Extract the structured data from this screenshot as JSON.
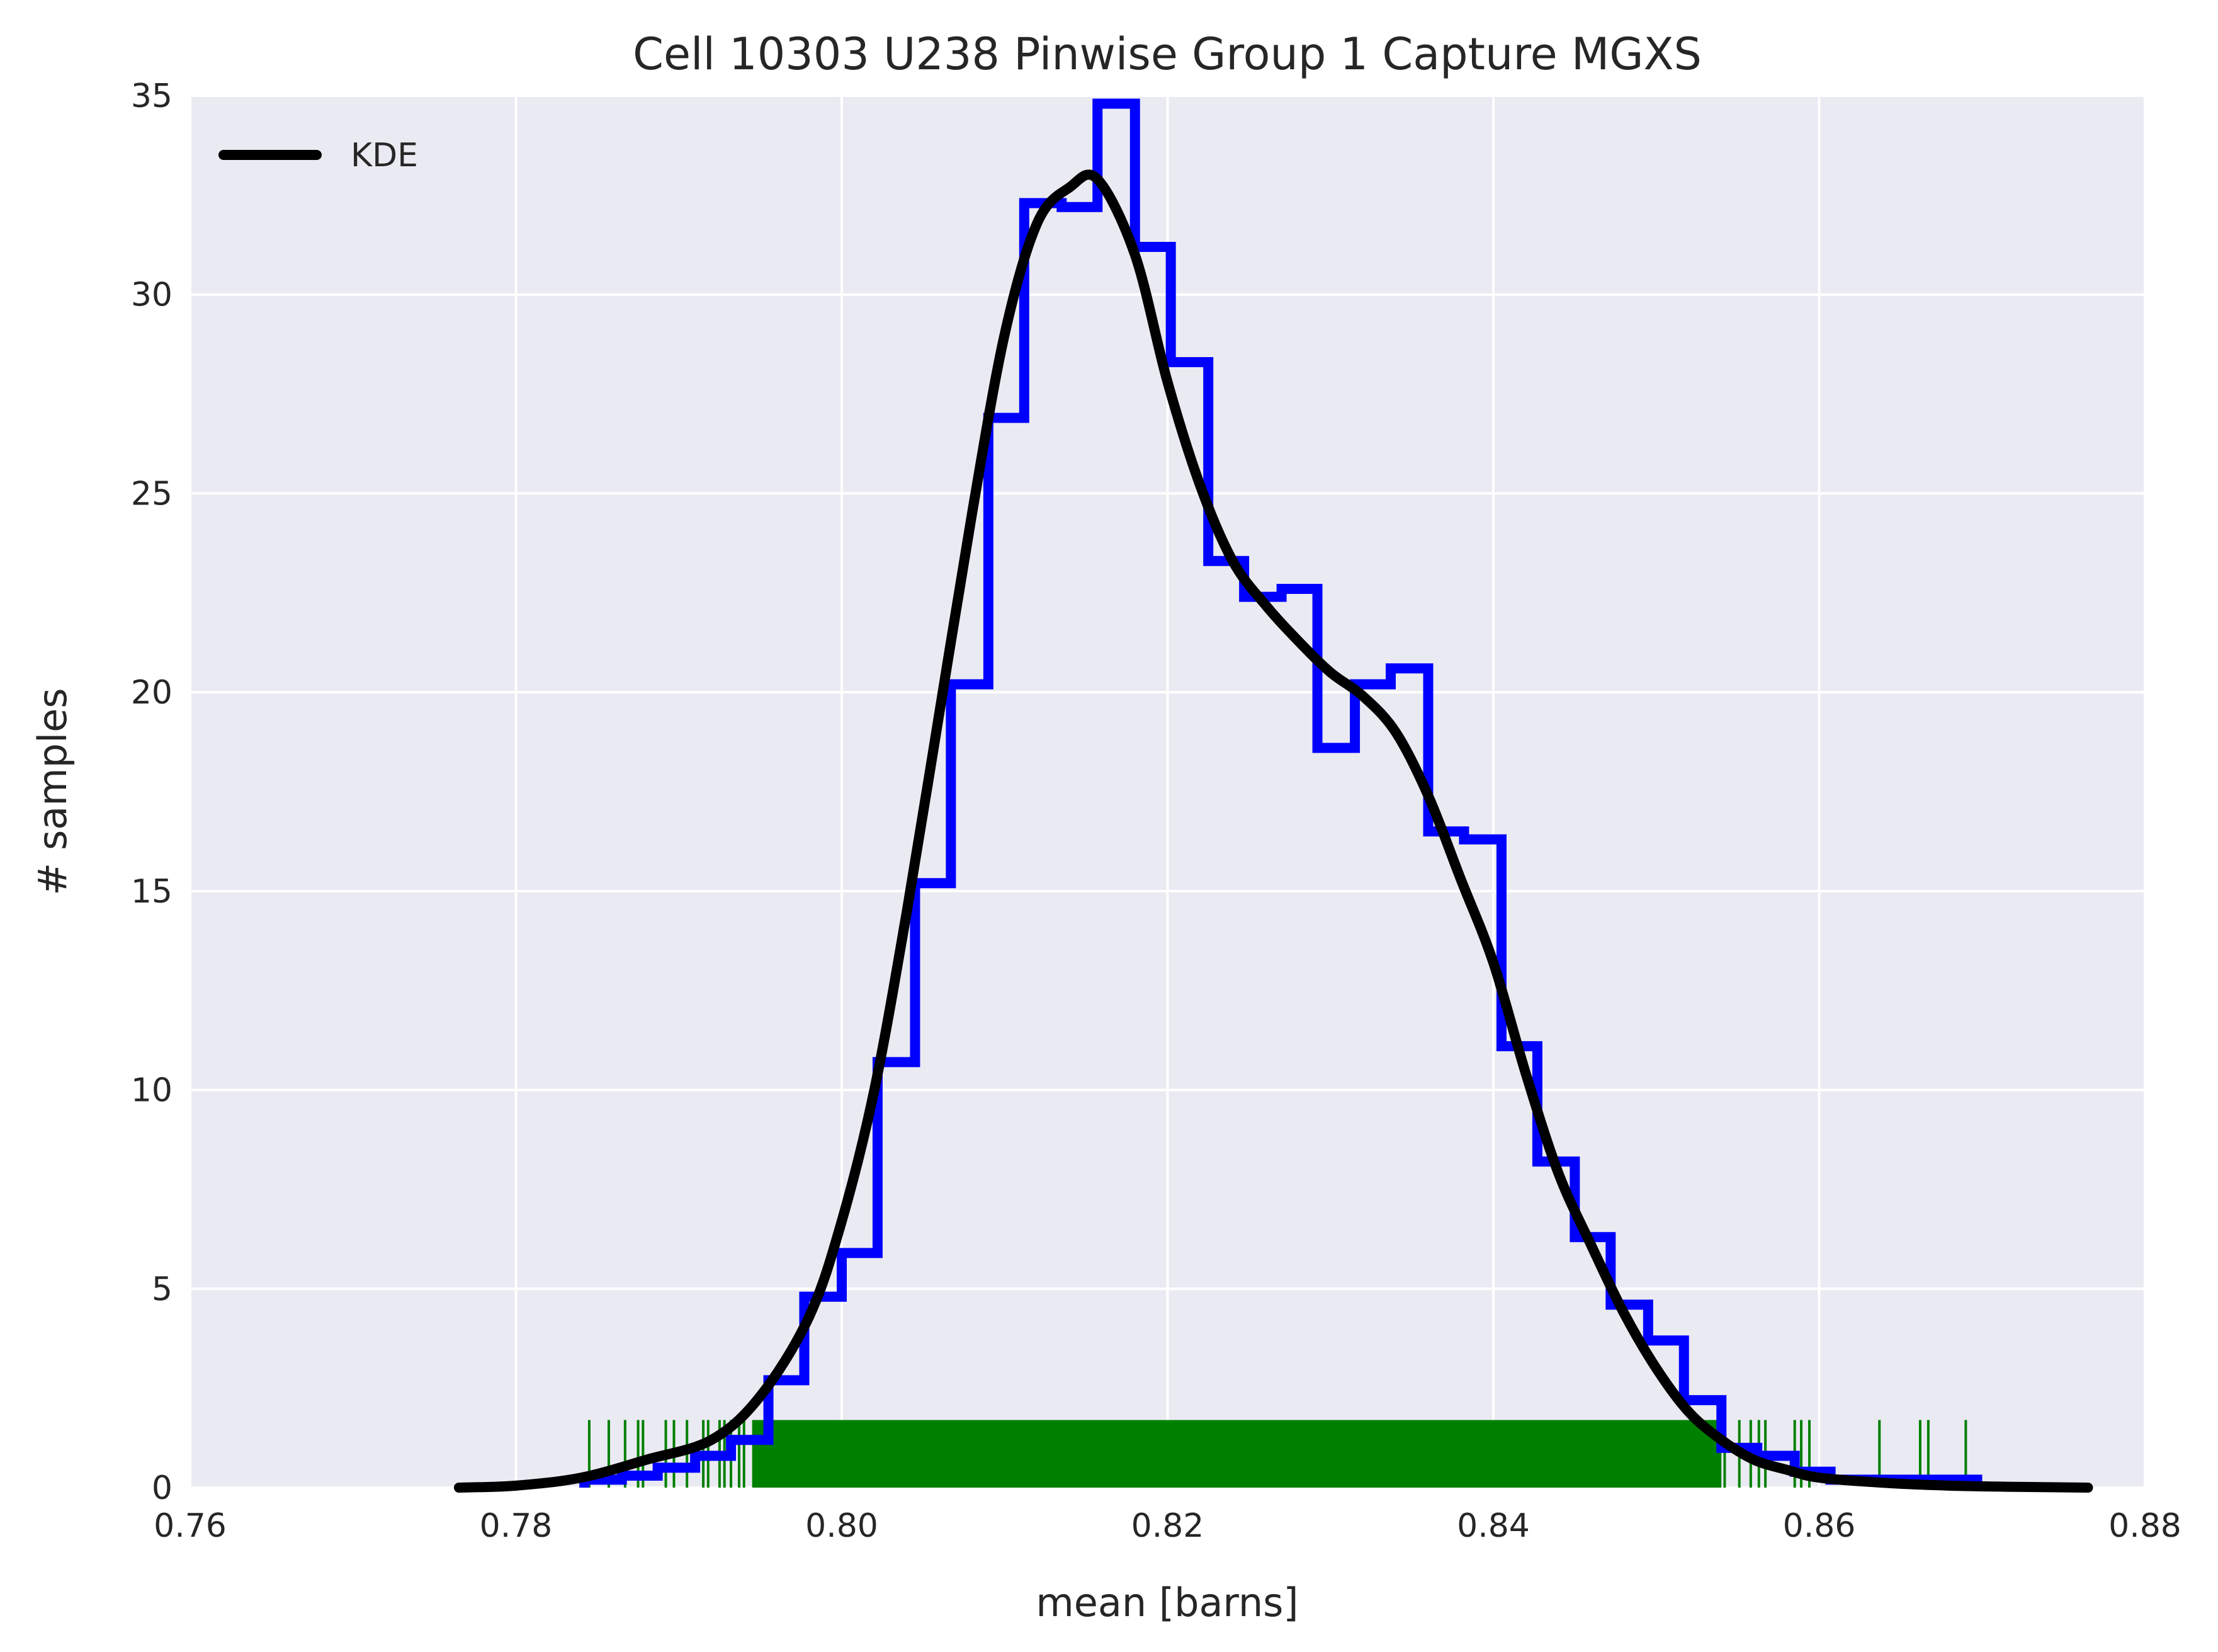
{
  "chart_data": {
    "type": "histogram",
    "title": "Cell 10303 U238 Pinwise Group 1 Capture MGXS",
    "xlabel": "mean [barns]",
    "ylabel": "# samples",
    "xlim": [
      0.76,
      0.88
    ],
    "ylim": [
      0,
      35
    ],
    "xticks": [
      "0.76",
      "0.78",
      "0.80",
      "0.82",
      "0.84",
      "0.86",
      "0.88"
    ],
    "yticks": [
      "0",
      "5",
      "10",
      "15",
      "20",
      "25",
      "30",
      "35"
    ],
    "grid": true,
    "legend_position": "upper-left",
    "legend": [
      {
        "name": "KDE",
        "color": "#000000"
      }
    ],
    "colors": {
      "histogram": "#0000ff",
      "kde": "#000000",
      "rug": "#008000",
      "background": "#eaeaf2",
      "grid": "#ffffff"
    },
    "histogram": {
      "bin_edges": [
        0.7842,
        0.7865,
        0.7887,
        0.791,
        0.7932,
        0.7955,
        0.7977,
        0.8,
        0.8022,
        0.8045,
        0.8067,
        0.809,
        0.8112,
        0.8135,
        0.8157,
        0.818,
        0.8202,
        0.8225,
        0.8247,
        0.827,
        0.8292,
        0.8315,
        0.8337,
        0.836,
        0.8382,
        0.8405,
        0.8427,
        0.845,
        0.8472,
        0.8495,
        0.8517,
        0.854,
        0.8562,
        0.8585,
        0.8607,
        0.863,
        0.8652,
        0.8675,
        0.8697
      ],
      "counts": [
        0.2,
        0.3,
        0.5,
        0.8,
        1.2,
        2.7,
        4.8,
        5.9,
        10.7,
        15.2,
        20.2,
        26.9,
        32.3,
        32.2,
        34.8,
        31.2,
        28.3,
        23.3,
        22.4,
        22.6,
        18.6,
        20.2,
        20.6,
        16.5,
        16.3,
        11.1,
        8.2,
        6.3,
        4.6,
        3.7,
        2.2,
        1.0,
        0.8,
        0.4,
        0.2,
        0.2,
        0.2,
        0.2
      ]
    },
    "kde": {
      "x": [
        0.7765,
        0.78,
        0.784,
        0.788,
        0.792,
        0.795,
        0.798,
        0.8,
        0.802,
        0.804,
        0.806,
        0.808,
        0.81,
        0.812,
        0.814,
        0.8157,
        0.818,
        0.82,
        0.822,
        0.824,
        0.826,
        0.828,
        0.83,
        0.832,
        0.834,
        0.836,
        0.838,
        0.84,
        0.842,
        0.844,
        0.846,
        0.848,
        0.85,
        0.852,
        0.854,
        0.856,
        0.858,
        0.86,
        0.864,
        0.868,
        0.872,
        0.8765
      ],
      "y": [
        0.0,
        0.05,
        0.25,
        0.7,
        1.2,
        2.3,
        4.3,
        6.7,
        10.0,
        14.5,
        19.5,
        24.5,
        29.0,
        31.8,
        32.7,
        32.9,
        31.0,
        27.8,
        25.2,
        23.3,
        22.2,
        21.3,
        20.5,
        19.9,
        19.0,
        17.4,
        15.3,
        13.2,
        10.4,
        7.9,
        6.1,
        4.4,
        3.0,
        1.9,
        1.2,
        0.7,
        0.45,
        0.25,
        0.12,
        0.05,
        0.02,
        0.0
      ]
    },
    "rug": {
      "dense_range": [
        0.7945,
        0.854
      ],
      "x": [
        0.7845,
        0.7857,
        0.7867,
        0.7875,
        0.7878,
        0.7892,
        0.7897,
        0.7905,
        0.7915,
        0.7918,
        0.7925,
        0.7928,
        0.7932,
        0.7937,
        0.794,
        0.8542,
        0.8551,
        0.8558,
        0.8563,
        0.8567,
        0.8585,
        0.8589,
        0.8594,
        0.8637,
        0.8662,
        0.8667,
        0.869
      ]
    }
  }
}
